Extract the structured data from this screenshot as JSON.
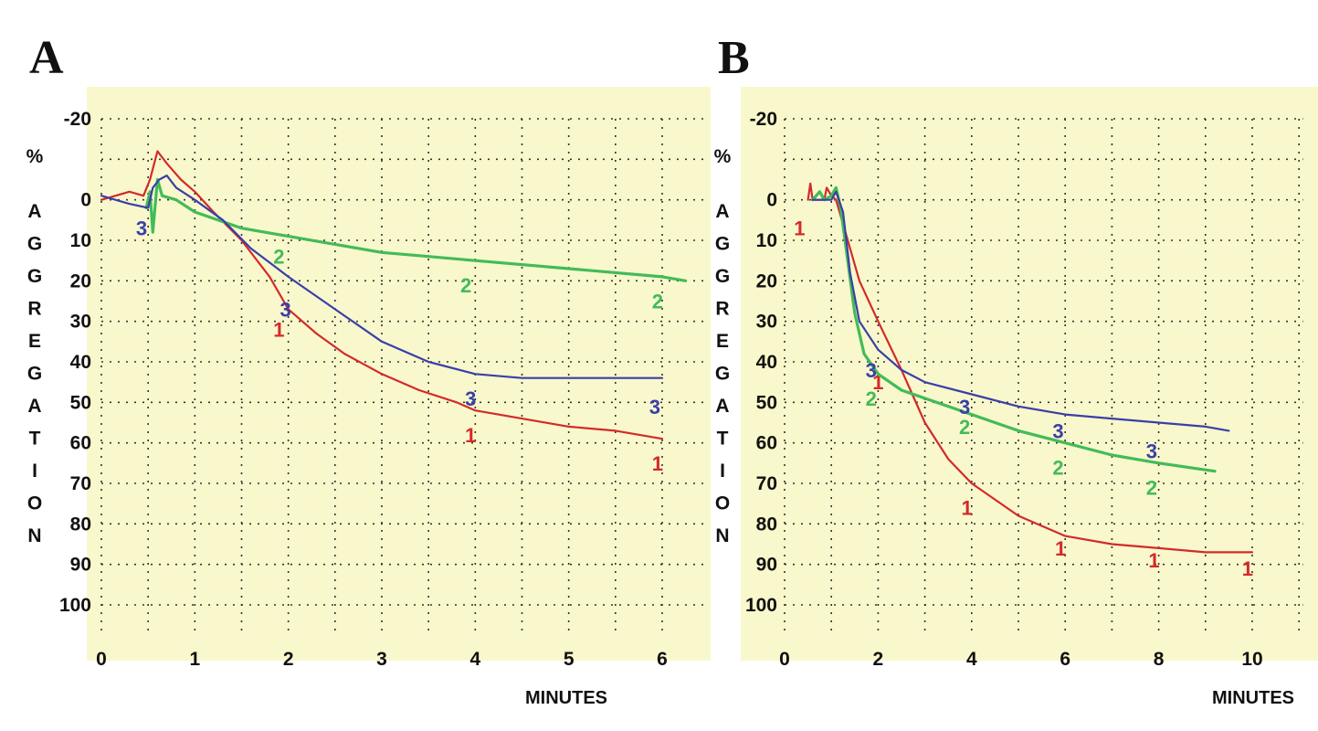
{
  "chart_data": [
    {
      "type": "line",
      "panel_label": "A",
      "xlabel": "MINUTES",
      "ylabel": "% AGGREGATION",
      "xlim": [
        0,
        6.5
      ],
      "ylim": [
        -20,
        110
      ],
      "y_inverted": true,
      "x_ticks": [
        "0",
        "1",
        "2",
        "3",
        "4",
        "5",
        "6"
      ],
      "y_ticks": [
        "-20",
        "",
        "0",
        "10",
        "20",
        "30",
        "40",
        "50",
        "60",
        "70",
        "80",
        "90",
        "100"
      ],
      "grid": true,
      "colors": {
        "background": "#f8f8cc",
        "1": "#d42a2a",
        "2": "#43bb58",
        "3": "#3a3fa8"
      },
      "series": [
        {
          "name": "1",
          "color": "#d42a2a",
          "points": [
            [
              0,
              0
            ],
            [
              0.3,
              -2
            ],
            [
              0.45,
              -1
            ],
            [
              0.52,
              -5
            ],
            [
              0.6,
              -12
            ],
            [
              0.7,
              -9
            ],
            [
              0.85,
              -5
            ],
            [
              1,
              -2
            ],
            [
              1.2,
              3
            ],
            [
              1.5,
              10
            ],
            [
              1.8,
              19
            ],
            [
              2,
              27
            ],
            [
              2.3,
              33
            ],
            [
              2.6,
              38
            ],
            [
              3,
              43
            ],
            [
              3.4,
              47
            ],
            [
              3.8,
              50
            ],
            [
              4,
              52
            ],
            [
              4.5,
              54
            ],
            [
              5,
              56
            ],
            [
              5.5,
              57
            ],
            [
              6,
              59
            ]
          ],
          "markers": [
            [
              1.9,
              32
            ],
            [
              3.95,
              58
            ],
            [
              5.95,
              65
            ]
          ]
        },
        {
          "name": "2",
          "color": "#43bb58",
          "points": [
            [
              0.48,
              2
            ],
            [
              0.52,
              -2
            ],
            [
              0.55,
              8
            ],
            [
              0.6,
              -5
            ],
            [
              0.65,
              -1
            ],
            [
              0.8,
              0
            ],
            [
              1,
              3
            ],
            [
              1.5,
              7
            ],
            [
              2,
              9
            ],
            [
              2.5,
              11
            ],
            [
              3,
              13
            ],
            [
              3.5,
              14
            ],
            [
              4,
              15
            ],
            [
              5,
              17
            ],
            [
              6,
              19
            ],
            [
              6.25,
              20
            ]
          ],
          "markers": [
            [
              1.9,
              14
            ],
            [
              3.9,
              21
            ],
            [
              5.95,
              25
            ]
          ]
        },
        {
          "name": "3",
          "color": "#3a3fa8",
          "points": [
            [
              0,
              -1
            ],
            [
              0.3,
              1
            ],
            [
              0.5,
              2
            ],
            [
              0.55,
              -3
            ],
            [
              0.62,
              -5
            ],
            [
              0.7,
              -6
            ],
            [
              0.8,
              -3
            ],
            [
              1,
              0
            ],
            [
              1.3,
              5
            ],
            [
              1.6,
              12
            ],
            [
              2,
              19
            ],
            [
              2.5,
              27
            ],
            [
              3,
              35
            ],
            [
              3.5,
              40
            ],
            [
              4,
              43
            ],
            [
              4.5,
              44
            ],
            [
              5,
              44
            ],
            [
              5.5,
              44
            ],
            [
              6,
              44
            ]
          ],
          "markers": [
            [
              0.43,
              7
            ],
            [
              1.97,
              27
            ],
            [
              3.95,
              49
            ],
            [
              5.92,
              51
            ]
          ]
        }
      ]
    },
    {
      "type": "line",
      "panel_label": "B",
      "xlabel": "MINUTES",
      "ylabel": "% AGGREGATION",
      "xlim": [
        0,
        10.5
      ],
      "ylim": [
        -20,
        110
      ],
      "y_inverted": true,
      "x_ticks": [
        "0",
        "2",
        "4",
        "6",
        "8",
        "10"
      ],
      "y_ticks": [
        "-20",
        "",
        "0",
        "10",
        "20",
        "30",
        "40",
        "50",
        "60",
        "70",
        "80",
        "90",
        "100"
      ],
      "grid": true,
      "colors": {
        "background": "#f8f8cc",
        "1": "#d42a2a",
        "2": "#43bb58",
        "3": "#3a3fa8"
      },
      "series": [
        {
          "name": "1",
          "color": "#d42a2a",
          "points": [
            [
              0.5,
              0
            ],
            [
              0.55,
              -4
            ],
            [
              0.6,
              0
            ],
            [
              0.85,
              0
            ],
            [
              0.9,
              -3
            ],
            [
              1,
              -1
            ],
            [
              1.1,
              0
            ],
            [
              1.3,
              8
            ],
            [
              1.6,
              20
            ],
            [
              2,
              30
            ],
            [
              2.5,
              42
            ],
            [
              3,
              55
            ],
            [
              3.5,
              64
            ],
            [
              4,
              70
            ],
            [
              5,
              78
            ],
            [
              6,
              83
            ],
            [
              7,
              85
            ],
            [
              8,
              86
            ],
            [
              9,
              87
            ],
            [
              10,
              87
            ]
          ],
          "markers": [
            [
              0.32,
              7
            ],
            [
              2.0,
              45
            ],
            [
              3.9,
              76
            ],
            [
              5.9,
              86
            ],
            [
              7.9,
              89
            ],
            [
              9.9,
              91
            ]
          ]
        },
        {
          "name": "2",
          "color": "#43bb58",
          "points": [
            [
              0.6,
              0
            ],
            [
              0.75,
              -2
            ],
            [
              0.85,
              0
            ],
            [
              1,
              -1
            ],
            [
              1.1,
              -3
            ],
            [
              1.2,
              2
            ],
            [
              1.35,
              15
            ],
            [
              1.5,
              28
            ],
            [
              1.7,
              38
            ],
            [
              2,
              43
            ],
            [
              2.5,
              47
            ],
            [
              3,
              49
            ],
            [
              4,
              53
            ],
            [
              5,
              57
            ],
            [
              6,
              60
            ],
            [
              7,
              63
            ],
            [
              8,
              65
            ],
            [
              9.2,
              67
            ]
          ],
          "markers": [
            [
              1.85,
              49
            ],
            [
              3.85,
              56
            ],
            [
              5.85,
              66
            ],
            [
              7.85,
              71
            ]
          ]
        },
        {
          "name": "3",
          "color": "#3a3fa8",
          "points": [
            [
              0.6,
              0
            ],
            [
              1,
              0
            ],
            [
              1.1,
              -2
            ],
            [
              1.25,
              3
            ],
            [
              1.4,
              18
            ],
            [
              1.6,
              30
            ],
            [
              2,
              37
            ],
            [
              2.5,
              42
            ],
            [
              3,
              45
            ],
            [
              4,
              48
            ],
            [
              5,
              51
            ],
            [
              6,
              53
            ],
            [
              7,
              54
            ],
            [
              8,
              55
            ],
            [
              9,
              56
            ],
            [
              9.5,
              57
            ]
          ],
          "markers": [
            [
              1.85,
              42
            ],
            [
              3.85,
              51
            ],
            [
              5.85,
              57
            ],
            [
              7.85,
              62
            ]
          ]
        }
      ]
    }
  ]
}
